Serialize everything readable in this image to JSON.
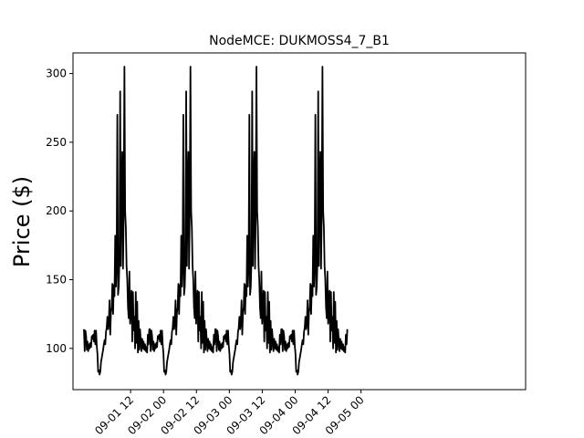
{
  "chart_data": {
    "type": "line",
    "title": "NodeMCE: DUKMOSS4_7_B1",
    "xlabel": "",
    "ylabel": "Price ($)",
    "ylim": [
      70,
      315
    ],
    "y_ticks": [
      100,
      150,
      200,
      250,
      300
    ],
    "x_range_hours": [
      15,
      180
    ],
    "x_ticks": [
      {
        "label": "09-01 12",
        "hour": 36
      },
      {
        "label": "09-02 00",
        "hour": 48
      },
      {
        "label": "09-02 12",
        "hour": 60
      },
      {
        "label": "09-03 00",
        "hour": 72
      },
      {
        "label": "09-03 12",
        "hour": 84
      },
      {
        "label": "09-04 00",
        "hour": 96
      },
      {
        "label": "09-04 12",
        "hour": 108
      },
      {
        "label": "09-05 00",
        "hour": 120
      }
    ],
    "series": [
      {
        "color": "#000000",
        "start_hour": 19,
        "period_hours": 24,
        "periods": 4,
        "values_one_period": [
          114,
          98,
          113,
          109,
          99,
          105,
          98,
          103,
          100,
          104,
          101,
          109,
          107,
          110,
          105,
          113,
          103,
          113,
          102,
          96,
          83,
          84,
          81,
          83,
          90,
          93,
          96,
          99,
          103,
          106,
          103,
          112,
          115,
          123,
          114,
          119,
          135,
          110,
          126,
          130,
          147,
          125,
          146,
          138,
          182,
          145,
          163,
          270,
          139,
          145,
          165,
          287,
          160,
          215,
          243,
          158,
          199,
          305,
          200,
          188,
          160,
          150,
          130,
          122,
          156,
          118,
          133,
          142,
          105,
          141,
          113,
          123,
          100,
          141,
          104,
          134,
          97,
          120,
          99,
          114,
          106,
          98,
          107,
          100,
          105,
          99,
          103,
          98,
          101,
          97,
          110,
          103,
          114
        ]
      }
    ]
  }
}
